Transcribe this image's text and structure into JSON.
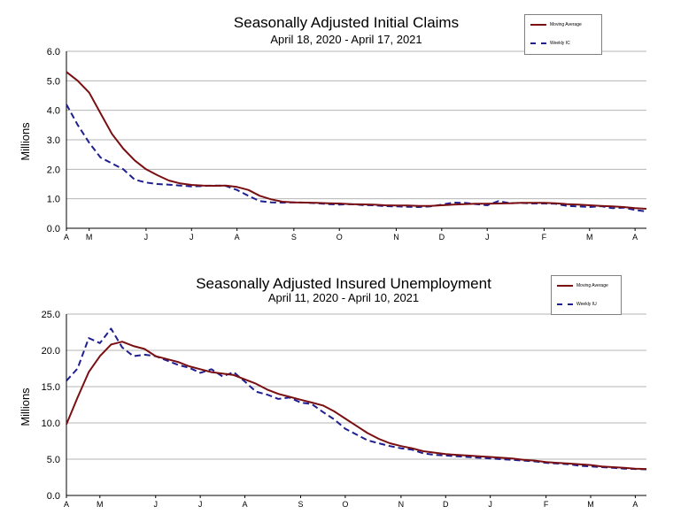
{
  "chart_data": [
    {
      "type": "line",
      "title": "Seasonally Adjusted Initial Claims",
      "subtitle": "April 18, 2020 - April 17, 2021",
      "ylabel": "Millions",
      "ylim": [
        0,
        6
      ],
      "yticks": [
        "0.0",
        "1.0",
        "2.0",
        "3.0",
        "4.0",
        "5.0",
        "6.0"
      ],
      "xtick_labels": [
        "A",
        "M",
        "J",
        "J",
        "A",
        "S",
        "O",
        "N",
        "D",
        "J",
        "F",
        "M",
        "A"
      ],
      "xtick_positions": [
        0,
        2,
        7,
        11,
        15,
        20,
        24,
        29,
        33,
        37,
        42,
        46,
        50
      ],
      "grid": true,
      "legend": {
        "position": "top-right",
        "entries": [
          "Moving Average",
          "Weekly IC"
        ]
      },
      "series": [
        {
          "name": "Moving Average",
          "color": "#7a0f12",
          "style": "solid",
          "values": [
            5.3,
            5.0,
            4.6,
            3.9,
            3.2,
            2.7,
            2.3,
            2.0,
            1.8,
            1.62,
            1.52,
            1.47,
            1.45,
            1.44,
            1.45,
            1.4,
            1.3,
            1.1,
            0.98,
            0.9,
            0.88,
            0.87,
            0.86,
            0.85,
            0.84,
            0.82,
            0.81,
            0.8,
            0.78,
            0.77,
            0.77,
            0.76,
            0.76,
            0.78,
            0.8,
            0.82,
            0.83,
            0.83,
            0.84,
            0.85,
            0.86,
            0.86,
            0.86,
            0.85,
            0.82,
            0.8,
            0.78,
            0.76,
            0.74,
            0.72,
            0.68,
            0.66
          ]
        },
        {
          "name": "Weekly IC",
          "color": "#1f1f8f",
          "style": "dashed",
          "values": [
            4.2,
            3.5,
            2.9,
            2.4,
            2.2,
            2.0,
            1.65,
            1.55,
            1.5,
            1.48,
            1.45,
            1.42,
            1.43,
            1.45,
            1.44,
            1.3,
            1.1,
            0.92,
            0.88,
            0.87,
            0.88,
            0.87,
            0.85,
            0.82,
            0.8,
            0.82,
            0.79,
            0.78,
            0.75,
            0.74,
            0.73,
            0.72,
            0.74,
            0.8,
            0.87,
            0.86,
            0.82,
            0.78,
            0.92,
            0.85,
            0.86,
            0.84,
            0.84,
            0.83,
            0.76,
            0.74,
            0.72,
            0.75,
            0.68,
            0.7,
            0.62,
            0.57
          ]
        }
      ]
    },
    {
      "type": "line",
      "title": "Seasonally Adjusted Insured Unemployment",
      "subtitle": "April 11, 2020 - April 10, 2021",
      "ylabel": "Millions",
      "ylim": [
        0,
        25
      ],
      "yticks": [
        "0.0",
        "5.0",
        "10.0",
        "15.0",
        "20.0",
        "25.0"
      ],
      "xtick_labels": [
        "A",
        "M",
        "J",
        "J",
        "A",
        "S",
        "O",
        "N",
        "D",
        "J",
        "F",
        "M",
        "A"
      ],
      "xtick_positions": [
        0,
        3,
        8,
        12,
        16,
        21,
        25,
        30,
        34,
        38,
        43,
        47,
        51
      ],
      "grid": true,
      "legend": {
        "position": "top-right",
        "entries": [
          "Moving Average",
          "Weekly IU"
        ]
      },
      "series": [
        {
          "name": "Moving Average",
          "color": "#7a0f12",
          "style": "solid",
          "values": [
            9.8,
            13.5,
            17.0,
            19.2,
            20.8,
            21.2,
            20.6,
            20.2,
            19.2,
            18.8,
            18.4,
            17.8,
            17.4,
            17.0,
            16.8,
            16.6,
            16.0,
            15.4,
            14.6,
            14.0,
            13.6,
            13.2,
            12.8,
            12.4,
            11.6,
            10.6,
            9.6,
            8.6,
            7.8,
            7.2,
            6.8,
            6.5,
            6.1,
            5.9,
            5.7,
            5.6,
            5.5,
            5.4,
            5.3,
            5.2,
            5.1,
            4.9,
            4.8,
            4.6,
            4.5,
            4.4,
            4.3,
            4.2,
            4.0,
            3.9,
            3.8,
            3.7,
            3.65
          ]
        },
        {
          "name": "Weekly IU",
          "color": "#1f1f8f",
          "style": "dashed",
          "values": [
            15.8,
            17.5,
            21.7,
            21.0,
            23.0,
            20.4,
            19.2,
            19.4,
            19.2,
            18.6,
            18.0,
            17.6,
            16.9,
            17.4,
            16.4,
            17.0,
            15.7,
            14.3,
            13.9,
            13.3,
            13.5,
            12.8,
            12.6,
            11.5,
            10.5,
            9.2,
            8.4,
            7.6,
            7.2,
            6.8,
            6.5,
            6.3,
            5.8,
            5.6,
            5.5,
            5.4,
            5.3,
            5.2,
            5.1,
            5.0,
            4.9,
            4.8,
            4.7,
            4.5,
            4.4,
            4.3,
            4.1,
            4.0,
            3.9,
            3.8,
            3.7,
            3.65,
            3.6
          ]
        }
      ]
    }
  ]
}
